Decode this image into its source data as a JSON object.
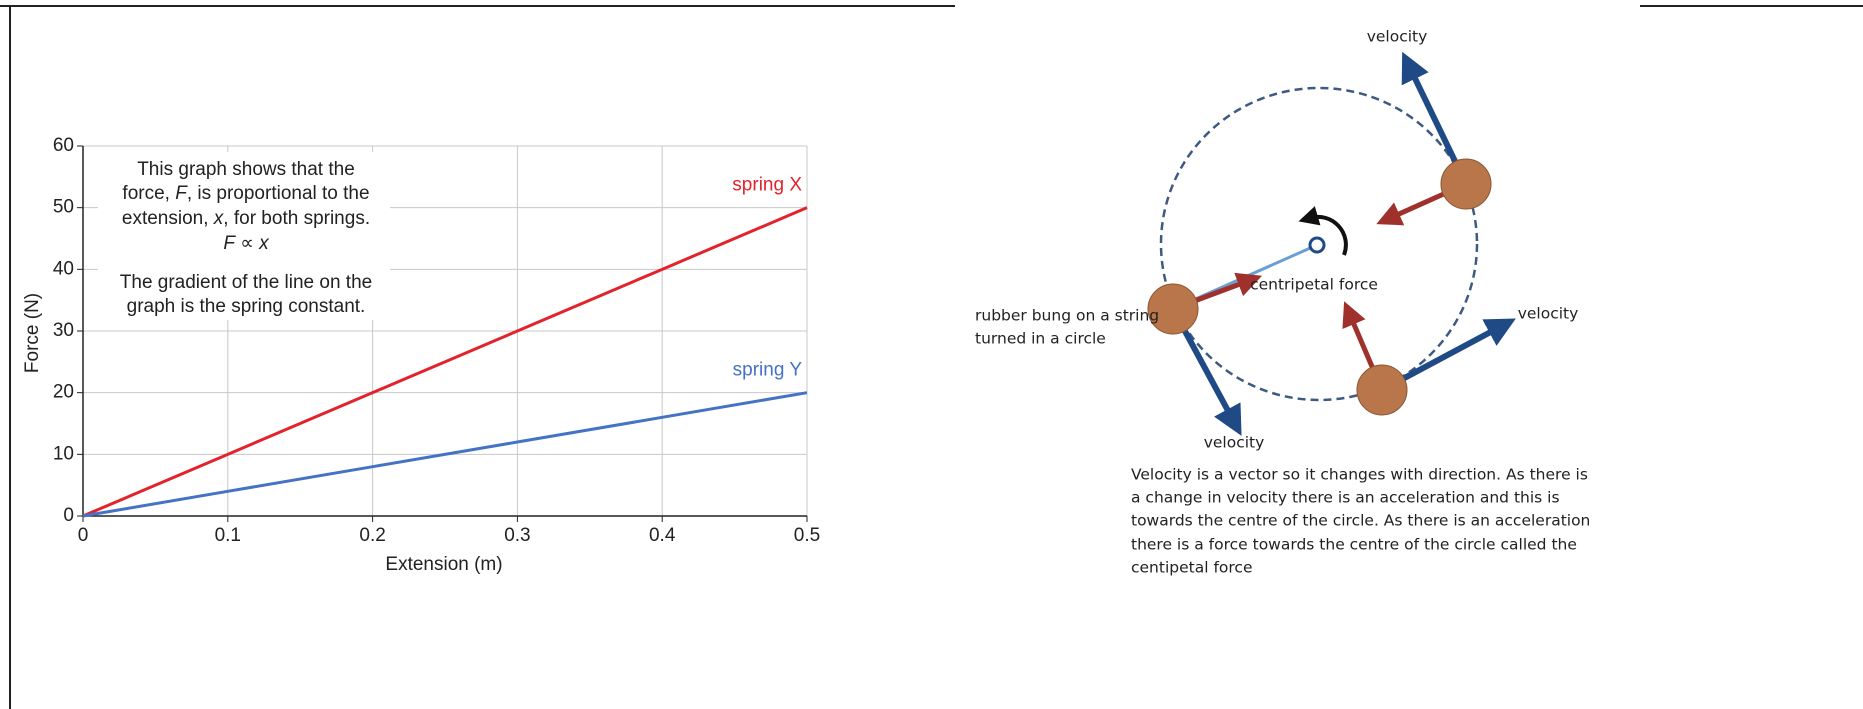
{
  "chart_data": {
    "type": "line",
    "x": [
      0,
      0.1,
      0.2,
      0.3,
      0.4,
      0.5
    ],
    "series": [
      {
        "name": "spring X",
        "color": "#e3232c",
        "values": [
          0,
          10,
          20,
          30,
          40,
          50
        ]
      },
      {
        "name": "spring Y",
        "color": "#4472c4",
        "values": [
          0,
          4,
          8,
          12,
          16,
          20
        ]
      }
    ],
    "xlabel": "Extension (m)",
    "ylabel": "Force (N)",
    "xlim": [
      0,
      0.5
    ],
    "ylim": [
      0,
      60
    ],
    "xticks": [
      0,
      0.1,
      0.2,
      0.3,
      0.4,
      0.5
    ],
    "yticks": [
      0,
      10,
      20,
      30,
      40,
      50,
      60
    ],
    "grid": true,
    "annotation": [
      [
        {
          "text": "This graph shows that the",
          "italic": false
        }
      ],
      [
        {
          "text": "force, ",
          "italic": false
        },
        {
          "text": "F",
          "italic": true
        },
        {
          "text": ", is proportional to the",
          "italic": false
        }
      ],
      [
        {
          "text": "extension, ",
          "italic": false
        },
        {
          "text": "x",
          "italic": true
        },
        {
          "text": ", for both springs.",
          "italic": false
        }
      ],
      [
        {
          "text": "F",
          "italic": true
        },
        {
          "text": " ∝ ",
          "italic": false
        },
        {
          "text": "x",
          "italic": true
        }
      ],
      [
        {
          "text": "The gradient of the line on the",
          "italic": false
        }
      ],
      [
        {
          "text": "graph is the spring constant.",
          "italic": false
        }
      ]
    ]
  },
  "diagram": {
    "labels": {
      "velocity_top": "velocity",
      "velocity_right": "velocity",
      "velocity_bottom": "velocity",
      "centripetal": "centripetal force",
      "bung": [
        "rubber bung on a string",
        "turned in a circle"
      ]
    },
    "caption": [
      "Velocity is a vector so it changes with direction. As there is",
      "a change in velocity there is an acceleration and this is",
      "towards the centre of the circle. As there is an acceleration",
      "there is a force towards the centre of the circle called the",
      "centipetal force"
    ]
  }
}
